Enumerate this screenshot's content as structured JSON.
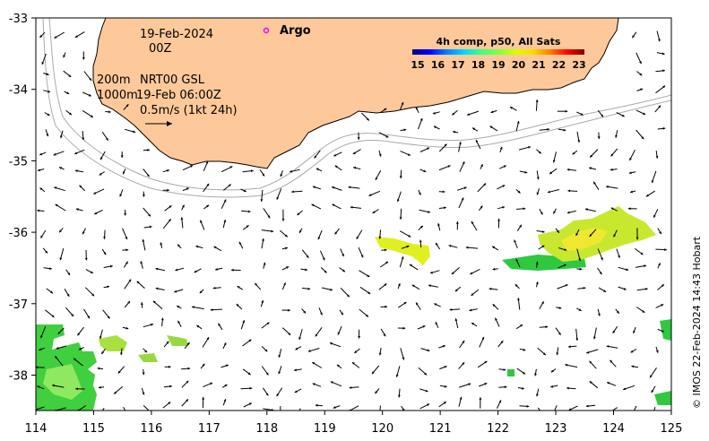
{
  "map": {
    "date_label": "19-Feb-2024",
    "time_label": "00Z",
    "depth_contour_1": "200m",
    "depth_contour_2": "1000m",
    "current_source": "NRT00 GSL",
    "current_time": "19-Feb 06:00Z",
    "vector_scale": "0.5m/s (1kt 24h)",
    "argo_label": "Argo",
    "credit": "© IMOS 22-Feb-2024 14:43 Hobart",
    "colors": {
      "land": "#fdc99a",
      "argo": "#ff00ff",
      "contour": "#aaaaaa"
    }
  },
  "legend": {
    "title": "4h comp, p50, All Sats",
    "ticks": [
      "15",
      "16",
      "17",
      "18",
      "19",
      "20",
      "21",
      "22",
      "23"
    ],
    "colors": [
      "#00007f",
      "#0000ff",
      "#007fff",
      "#00d8ff",
      "#3fff7f",
      "#7fff3f",
      "#d8ff00",
      "#ffd800",
      "#ff7f00",
      "#ff0000",
      "#7f0000"
    ]
  },
  "axes": {
    "x_ticks": [
      "114",
      "115",
      "116",
      "117",
      "118",
      "119",
      "120",
      "121",
      "122",
      "123",
      "124",
      "125"
    ],
    "y_ticks": [
      "-33",
      "-34",
      "-35",
      "-36",
      "-37",
      "-38"
    ]
  }
}
